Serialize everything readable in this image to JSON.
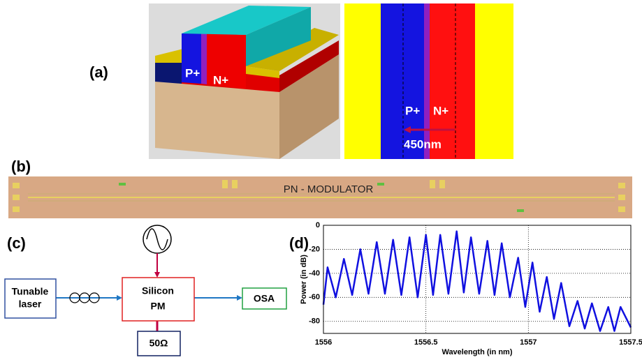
{
  "panel_a": {
    "label": "(a)",
    "device_labels": [
      "P+",
      "N+"
    ],
    "top_view_labels": [
      "P+",
      "N+"
    ],
    "width_label": "450nm"
  },
  "panel_b": {
    "label": "(b)",
    "chip_label": "PN - MODULATOR"
  },
  "panel_c": {
    "label": "(c)",
    "nodes": [
      {
        "lines": [
          "Tunable",
          "laser"
        ]
      },
      {
        "lines": [
          "Silicon",
          "PM"
        ]
      },
      {
        "lines": [
          "OSA"
        ]
      },
      {
        "lines": [
          "50Ω"
        ]
      }
    ]
  },
  "panel_d": {
    "label": "(d)"
  },
  "chart_data": {
    "type": "line",
    "color": "#1010e0",
    "x_label": "Wavelength (in nm)",
    "y_label": "Power (in dB)",
    "x": [
      1556.0,
      1556.02,
      1556.06,
      1556.1,
      1556.14,
      1556.18,
      1556.22,
      1556.26,
      1556.3,
      1556.34,
      1556.38,
      1556.42,
      1556.46,
      1556.5,
      1556.535,
      1556.57,
      1556.61,
      1556.65,
      1556.685,
      1556.72,
      1556.76,
      1556.8,
      1556.835,
      1556.87,
      1556.91,
      1556.95,
      1556.985,
      1557.02,
      1557.055,
      1557.09,
      1557.125,
      1557.16,
      1557.2,
      1557.24,
      1557.275,
      1557.31,
      1557.35,
      1557.39,
      1557.42,
      1557.45,
      1557.5
    ],
    "values": [
      -66,
      -35,
      -60,
      -28,
      -58,
      -20,
      -57,
      -14,
      -57,
      -12,
      -58,
      -10,
      -60,
      -8,
      -58,
      -8,
      -57,
      -5,
      -56,
      -10,
      -57,
      -13,
      -58,
      -15,
      -60,
      -27,
      -68,
      -31,
      -72,
      -43,
      -78,
      -48,
      -84,
      -63,
      -86,
      -65,
      -88,
      -68,
      -88,
      -68,
      -85
    ],
    "xlim": [
      1556,
      1557.5
    ],
    "ylim": [
      -90,
      0
    ],
    "xticks": [
      1556,
      1556.5,
      1557,
      1557.5
    ],
    "yticks": [
      0,
      -20,
      -40,
      -60,
      -80
    ],
    "grid": true
  }
}
